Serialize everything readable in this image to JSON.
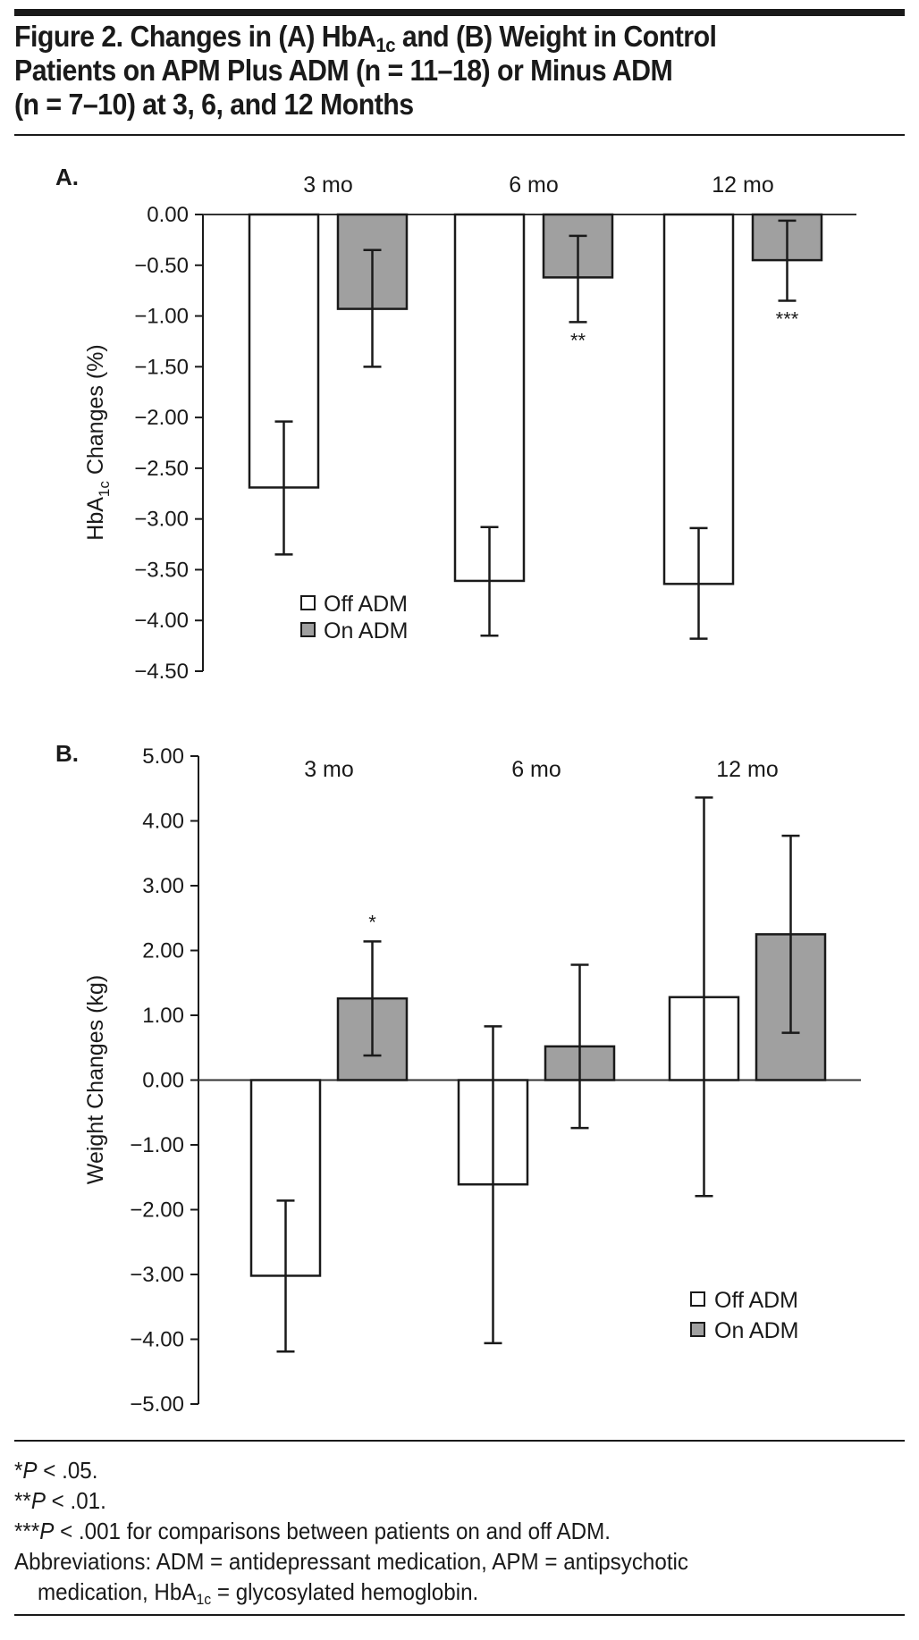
{
  "figure": {
    "title_part1": "Figure 2. Changes in (A) HbA",
    "title_sub": "1c",
    "title_part2": " and (B) Weight in Control",
    "title_line2": "Patients on APM Plus ADM (n = 11–18) or Minus ADM",
    "title_line3": "(n = 7–10) at 3, 6, and 12 Months"
  },
  "colors": {
    "off_fill": "#ffffff",
    "on_fill": "#a0a0a0",
    "stroke": "#1a1a1a"
  },
  "chart_data": [
    {
      "type": "bar",
      "panel_label": "A.",
      "title": "",
      "xlabel": "",
      "ylabel_main": "HbA",
      "ylabel_sub": "1c",
      "ylabel_rest": " Changes (%)",
      "ylim": [
        -4.5,
        0
      ],
      "yticks": [
        0,
        -0.5,
        -1,
        -1.5,
        -2,
        -2.5,
        -3,
        -3.5,
        -4,
        -4.5
      ],
      "ytick_labels": [
        "0.00",
        "−0.50",
        "−1.00",
        "−1.50",
        "−2.00",
        "−2.50",
        "−3.00",
        "−3.50",
        "−4.00",
        "−4.50"
      ],
      "categories": [
        "3 mo",
        "6 mo",
        "12 mo"
      ],
      "category_position": "top",
      "grid": false,
      "legend_position": "lower-left-center",
      "series": [
        {
          "name": "Off ADM",
          "values": [
            -2.69,
            -3.61,
            -3.64
          ],
          "error_low": [
            -3.35,
            -4.15,
            -4.18
          ],
          "error_high": [
            -2.04,
            -3.08,
            -3.09
          ]
        },
        {
          "name": "On ADM",
          "values": [
            -0.93,
            -0.62,
            -0.45
          ],
          "error_low": [
            -1.5,
            -1.06,
            -0.85
          ],
          "error_high": [
            -0.35,
            -0.21,
            -0.06
          ]
        }
      ],
      "annotations": [
        {
          "category": "6 mo",
          "series": "On ADM",
          "text": "**"
        },
        {
          "category": "12 mo",
          "series": "On ADM",
          "text": "***"
        }
      ]
    },
    {
      "type": "bar",
      "panel_label": "B.",
      "title": "",
      "xlabel": "",
      "ylabel_main": "Weight Changes (kg)",
      "ylim": [
        -5,
        5
      ],
      "yticks": [
        5,
        4,
        3,
        2,
        1,
        0,
        -1,
        -2,
        -3,
        -4,
        -5
      ],
      "ytick_labels": [
        "5.00",
        "4.00",
        "3.00",
        "2.00",
        "1.00",
        "0.00",
        "−1.00",
        "−2.00",
        "−3.00",
        "−4.00",
        "−5.00"
      ],
      "categories": [
        "3 mo",
        "6 mo",
        "12 mo"
      ],
      "category_position": "top",
      "grid": false,
      "legend_position": "bottom-right",
      "series": [
        {
          "name": "Off ADM",
          "values": [
            -3.02,
            -1.61,
            1.28
          ],
          "error_low": [
            -4.19,
            -4.06,
            -1.79
          ],
          "error_high": [
            -1.86,
            0.83,
            4.36
          ]
        },
        {
          "name": "On ADM",
          "values": [
            1.26,
            0.52,
            2.25
          ],
          "error_low": [
            0.38,
            -0.74,
            0.73
          ],
          "error_high": [
            2.14,
            1.78,
            3.77
          ]
        }
      ],
      "annotations": [
        {
          "category": "3 mo",
          "series": "On ADM",
          "text": "*"
        }
      ]
    }
  ],
  "notes": {
    "n1_star": "*",
    "n1_p": "P",
    "n1_rest": " < .05.",
    "n2_star": "**",
    "n2_p": "P",
    "n2_rest": " < .01.",
    "n3_star": "***",
    "n3_p": "P",
    "n3_rest": " < .001 for comparisons between patients on and off ADM.",
    "abbr_line1": "Abbreviations: ADM = antidepressant medication, APM = antipsychotic",
    "abbr_line2a": "medication, HbA",
    "abbr_sub": "1c",
    "abbr_line2b": " = glycosylated hemoglobin."
  }
}
